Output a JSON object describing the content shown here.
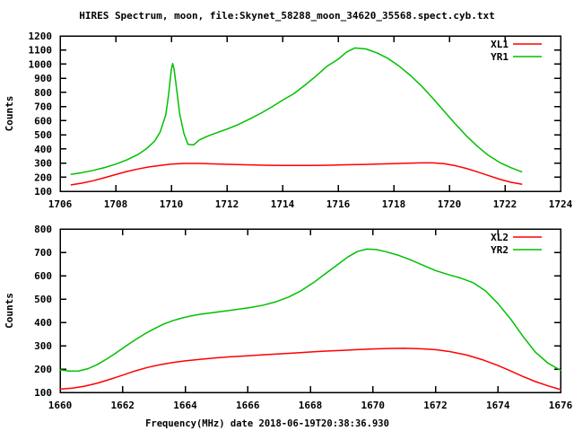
{
  "title": "HIRES Spectrum, moon, file:Skynet_58288_moon_34620_35568.spect.cyb.txt",
  "colors": {
    "series_red": "#ff0000",
    "series_green": "#00c000",
    "axis": "#000000",
    "background": "#ffffff"
  },
  "chart_data": [
    {
      "type": "line",
      "title": "",
      "xlabel": "",
      "ylabel": "Counts",
      "xlim": [
        1706,
        1724
      ],
      "ylim": [
        100,
        1200
      ],
      "xticks": [
        1706,
        1708,
        1710,
        1712,
        1714,
        1716,
        1718,
        1720,
        1722,
        1724
      ],
      "yticks": [
        100,
        200,
        300,
        400,
        500,
        600,
        700,
        800,
        900,
        1000,
        1100,
        1200
      ],
      "grid": false,
      "legend_position": "top-right-inside",
      "series": [
        {
          "name": "XL1",
          "color": "#ff0000",
          "points": [
            [
              1706.4,
              145
            ],
            [
              1706.8,
              158
            ],
            [
              1707.2,
              175
            ],
            [
              1707.6,
              196
            ],
            [
              1708,
              218
            ],
            [
              1708.4,
              240
            ],
            [
              1708.8,
              258
            ],
            [
              1709.2,
              272
            ],
            [
              1709.6,
              283
            ],
            [
              1710,
              292
            ],
            [
              1710.5,
              297
            ],
            [
              1711,
              297
            ],
            [
              1711.5,
              294
            ],
            [
              1712,
              291
            ],
            [
              1712.5,
              288
            ],
            [
              1713,
              286
            ],
            [
              1713.5,
              284
            ],
            [
              1714,
              283
            ],
            [
              1714.5,
              283
            ],
            [
              1715,
              283
            ],
            [
              1715.5,
              284
            ],
            [
              1716,
              286
            ],
            [
              1716.5,
              288
            ],
            [
              1717,
              290
            ],
            [
              1717.5,
              293
            ],
            [
              1718,
              296
            ],
            [
              1718.5,
              299
            ],
            [
              1719,
              301
            ],
            [
              1719.4,
              301
            ],
            [
              1719.8,
              295
            ],
            [
              1720.2,
              282
            ],
            [
              1720.6,
              262
            ],
            [
              1721,
              238
            ],
            [
              1721.4,
              212
            ],
            [
              1721.8,
              186
            ],
            [
              1722.2,
              164
            ],
            [
              1722.6,
              150
            ]
          ]
        },
        {
          "name": "YR1",
          "color": "#00c000",
          "points": [
            [
              1706.4,
              220
            ],
            [
              1706.8,
              232
            ],
            [
              1707.2,
              248
            ],
            [
              1707.6,
              268
            ],
            [
              1708,
              292
            ],
            [
              1708.4,
              322
            ],
            [
              1708.8,
              360
            ],
            [
              1709.1,
              400
            ],
            [
              1709.4,
              455
            ],
            [
              1709.6,
              520
            ],
            [
              1709.8,
              640
            ],
            [
              1709.9,
              780
            ],
            [
              1710,
              960
            ],
            [
              1710.05,
              1005
            ],
            [
              1710.1,
              965
            ],
            [
              1710.2,
              810
            ],
            [
              1710.3,
              650
            ],
            [
              1710.45,
              510
            ],
            [
              1710.6,
              432
            ],
            [
              1710.8,
              428
            ],
            [
              1711,
              462
            ],
            [
              1711.3,
              490
            ],
            [
              1711.6,
              512
            ],
            [
              1712,
              540
            ],
            [
              1712.4,
              572
            ],
            [
              1712.8,
              610
            ],
            [
              1713.2,
              650
            ],
            [
              1713.6,
              695
            ],
            [
              1714,
              745
            ],
            [
              1714.4,
              790
            ],
            [
              1714.8,
              850
            ],
            [
              1715.2,
              915
            ],
            [
              1715.6,
              985
            ],
            [
              1716,
              1035
            ],
            [
              1716.3,
              1085
            ],
            [
              1716.6,
              1115
            ],
            [
              1717,
              1108
            ],
            [
              1717.4,
              1080
            ],
            [
              1717.8,
              1040
            ],
            [
              1718.2,
              985
            ],
            [
              1718.6,
              920
            ],
            [
              1719,
              845
            ],
            [
              1719.4,
              760
            ],
            [
              1719.8,
              670
            ],
            [
              1720.2,
              580
            ],
            [
              1720.6,
              495
            ],
            [
              1721,
              420
            ],
            [
              1721.4,
              355
            ],
            [
              1721.8,
              305
            ],
            [
              1722.2,
              268
            ],
            [
              1722.6,
              238
            ]
          ]
        }
      ]
    },
    {
      "type": "line",
      "title": "",
      "xlabel": "Frequency(MHz) date 2018-06-19T20:38:36.930",
      "ylabel": "Counts",
      "xlim": [
        1660,
        1676
      ],
      "ylim": [
        100,
        800
      ],
      "xticks": [
        1660,
        1662,
        1664,
        1666,
        1668,
        1670,
        1672,
        1674,
        1676
      ],
      "yticks": [
        100,
        200,
        300,
        400,
        500,
        600,
        700,
        800
      ],
      "grid": false,
      "legend_position": "top-right-inside",
      "series": [
        {
          "name": "XL2",
          "color": "#ff0000",
          "points": [
            [
              1660,
              114
            ],
            [
              1660.4,
              118
            ],
            [
              1660.8,
              127
            ],
            [
              1661.2,
              140
            ],
            [
              1661.6,
              156
            ],
            [
              1662,
              174
            ],
            [
              1662.4,
              192
            ],
            [
              1662.8,
              207
            ],
            [
              1663.2,
              219
            ],
            [
              1663.6,
              228
            ],
            [
              1664,
              235
            ],
            [
              1664.5,
              242
            ],
            [
              1665,
              248
            ],
            [
              1665.5,
              253
            ],
            [
              1666,
              257
            ],
            [
              1666.5,
              261
            ],
            [
              1667,
              265
            ],
            [
              1667.5,
              269
            ],
            [
              1668,
              273
            ],
            [
              1668.5,
              277
            ],
            [
              1669,
              280
            ],
            [
              1669.5,
              283
            ],
            [
              1670,
              286
            ],
            [
              1670.5,
              288
            ],
            [
              1671,
              289
            ],
            [
              1671.5,
              287
            ],
            [
              1672,
              283
            ],
            [
              1672.5,
              274
            ],
            [
              1673,
              260
            ],
            [
              1673.5,
              240
            ],
            [
              1674,
              215
            ],
            [
              1674.4,
              192
            ],
            [
              1674.8,
              168
            ],
            [
              1675.2,
              146
            ],
            [
              1675.6,
              128
            ],
            [
              1676,
              112
            ]
          ]
        },
        {
          "name": "YR2",
          "color": "#00c000",
          "points": [
            [
              1660,
              196
            ],
            [
              1660.3,
              191
            ],
            [
              1660.6,
              192
            ],
            [
              1660.9,
              202
            ],
            [
              1661.2,
              220
            ],
            [
              1661.5,
              244
            ],
            [
              1661.8,
              270
            ],
            [
              1662.1,
              298
            ],
            [
              1662.4,
              325
            ],
            [
              1662.7,
              350
            ],
            [
              1663,
              372
            ],
            [
              1663.3,
              392
            ],
            [
              1663.6,
              407
            ],
            [
              1663.9,
              419
            ],
            [
              1664.2,
              428
            ],
            [
              1664.5,
              435
            ],
            [
              1664.9,
              442
            ],
            [
              1665.3,
              449
            ],
            [
              1665.7,
              456
            ],
            [
              1666.1,
              464
            ],
            [
              1666.5,
              474
            ],
            [
              1666.9,
              488
            ],
            [
              1667.3,
              508
            ],
            [
              1667.7,
              535
            ],
            [
              1668.1,
              570
            ],
            [
              1668.5,
              610
            ],
            [
              1668.9,
              650
            ],
            [
              1669.2,
              680
            ],
            [
              1669.5,
              703
            ],
            [
              1669.8,
              714
            ],
            [
              1670.1,
              712
            ],
            [
              1670.4,
              703
            ],
            [
              1670.8,
              688
            ],
            [
              1671.2,
              668
            ],
            [
              1671.6,
              645
            ],
            [
              1672,
              622
            ],
            [
              1672.4,
              605
            ],
            [
              1672.8,
              590
            ],
            [
              1673.2,
              570
            ],
            [
              1673.6,
              535
            ],
            [
              1674,
              480
            ],
            [
              1674.4,
              415
            ],
            [
              1674.8,
              340
            ],
            [
              1675.2,
              272
            ],
            [
              1675.6,
              225
            ],
            [
              1676,
              195
            ]
          ]
        }
      ]
    }
  ]
}
